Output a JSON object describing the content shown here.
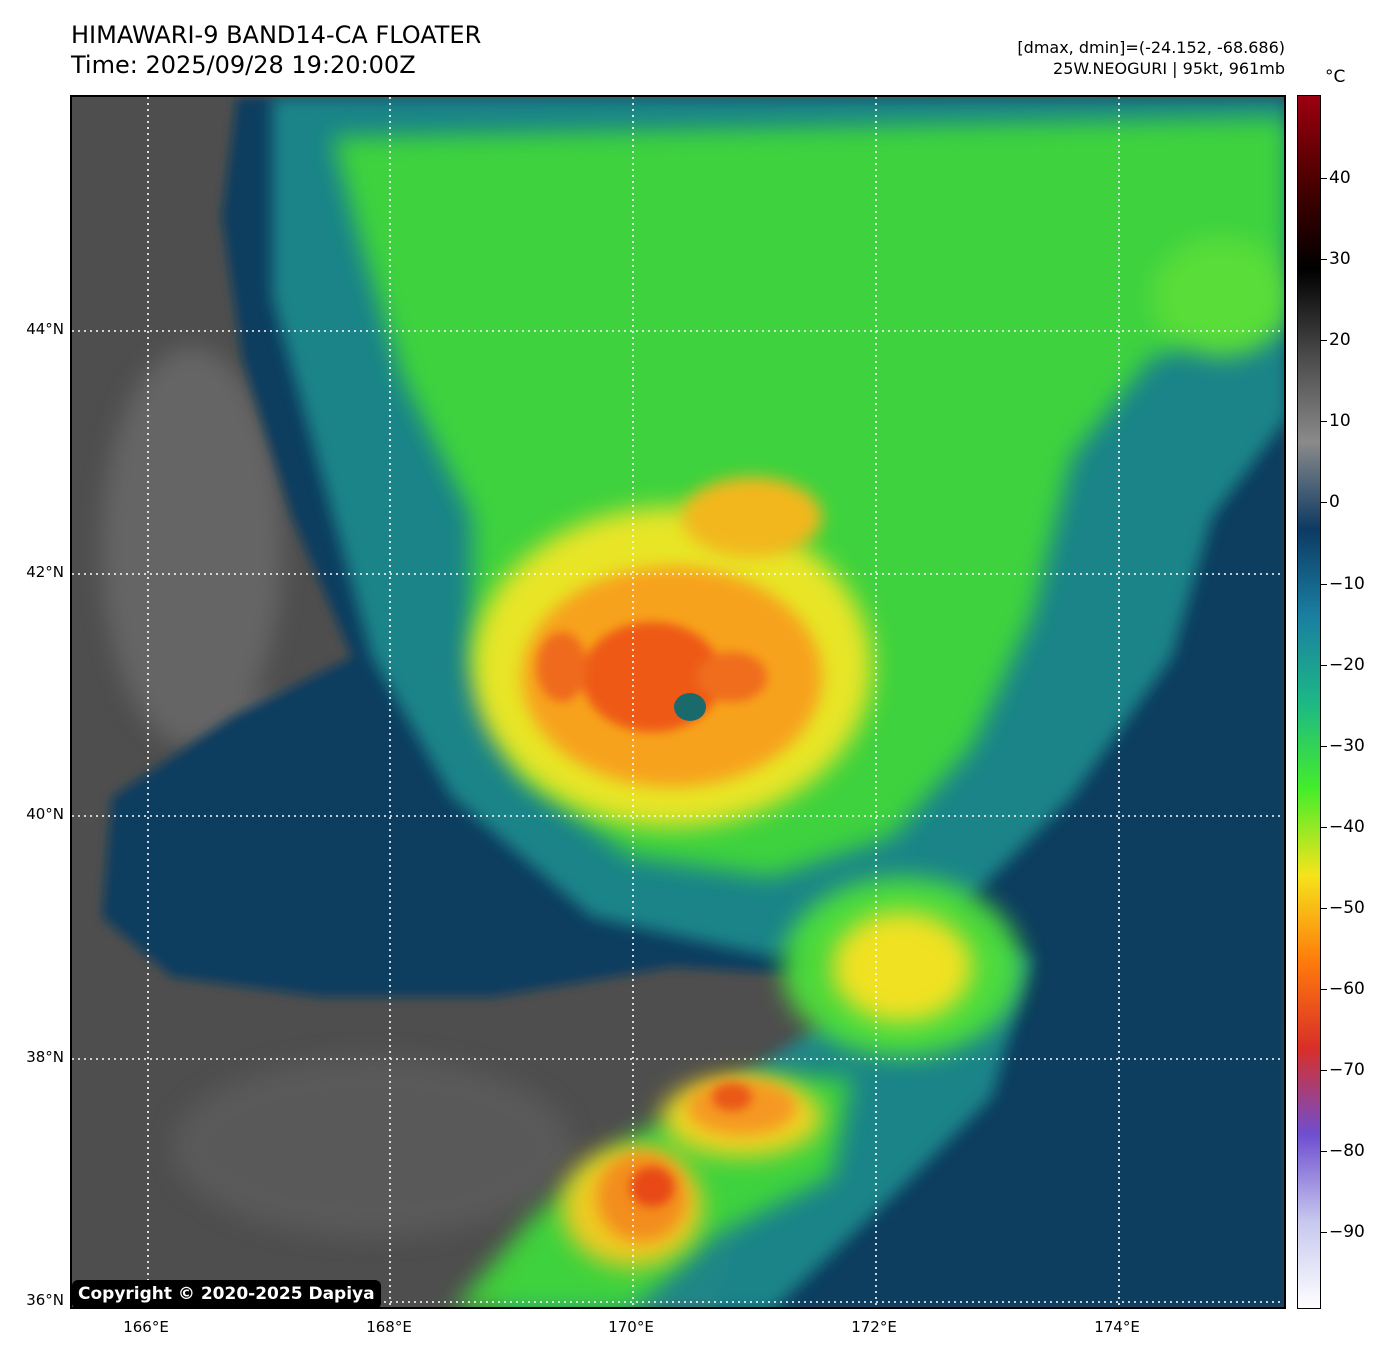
{
  "header": {
    "title_line1": "HIMAWARI-9 BAND14-CA FLOATER",
    "title_line2": "Time: 2025/09/28 19:20:00Z",
    "info_line1": "[dmax, dmin]=(-24.152, -68.686)",
    "info_line2": "25W.NEOGURI | 95kt, 961mb"
  },
  "axes": {
    "lat_labels": [
      "44°N",
      "42°N",
      "40°N",
      "38°N",
      "36°N"
    ],
    "lon_labels": [
      "166°E",
      "168°E",
      "170°E",
      "172°E",
      "174°E"
    ]
  },
  "colorbar": {
    "unit": "°C",
    "tick_labels": [
      "40",
      "30",
      "20",
      "10",
      "0",
      "−10",
      "−20",
      "−30",
      "−40",
      "−50",
      "−60",
      "−70",
      "−80",
      "−90"
    ],
    "stops": [
      "#fefeff",
      "#c7c8ee",
      "#6f4ed0",
      "#d92f28",
      "#ff7a0c",
      "#f5e41c",
      "#44ed2a",
      "#1db786",
      "#1a7ea1",
      "#0d3a63",
      "#8a8a8a",
      "#4a4a4a",
      "#000000",
      "#4a0000",
      "#9c0010"
    ]
  },
  "image": {
    "palette": {
      "background_gray": "#4c4c4c",
      "light_gray": "#707070",
      "dark_blue": "#0c3a5a",
      "teal": "#168a8a",
      "green": "#3fdc3a",
      "yellow": "#f2e326",
      "orange": "#f59d1c",
      "red": "#ea4a18"
    }
  },
  "copyright": "Copyright © 2020-2025 Dapiya"
}
